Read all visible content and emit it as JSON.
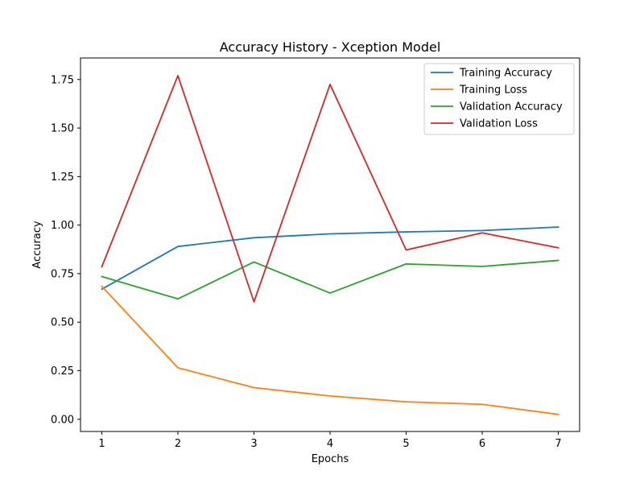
{
  "chart_data": {
    "type": "line",
    "title": "Accuracy History - Xception Model",
    "xlabel": "Epochs",
    "ylabel": "Accuracy",
    "x": [
      1,
      2,
      3,
      4,
      5,
      6,
      7
    ],
    "xlim": [
      0.72,
      7.28
    ],
    "ylim": [
      -0.063,
      1.861
    ],
    "xticks": [
      "1",
      "2",
      "3",
      "4",
      "5",
      "6",
      "7"
    ],
    "yticks": [
      "0.00",
      "0.25",
      "0.50",
      "0.75",
      "1.00",
      "1.25",
      "1.50",
      "1.75"
    ],
    "grid": false,
    "legend_position": "top-right",
    "series": [
      {
        "name": "Training Accuracy",
        "color": "#1f77b4",
        "values": [
          0.67,
          0.89,
          0.935,
          0.955,
          0.965,
          0.972,
          0.99
        ]
      },
      {
        "name": "Training Loss",
        "color": "#ff7f0e",
        "values": [
          0.685,
          0.265,
          0.163,
          0.12,
          0.09,
          0.077,
          0.025
        ]
      },
      {
        "name": "Validation Accuracy",
        "color": "#2ca02c",
        "values": [
          0.735,
          0.62,
          0.81,
          0.65,
          0.8,
          0.787,
          0.818
        ]
      },
      {
        "name": "Validation Loss",
        "color": "#d62728",
        "values": [
          0.785,
          1.77,
          0.605,
          1.725,
          0.872,
          0.96,
          0.883
        ]
      }
    ]
  }
}
